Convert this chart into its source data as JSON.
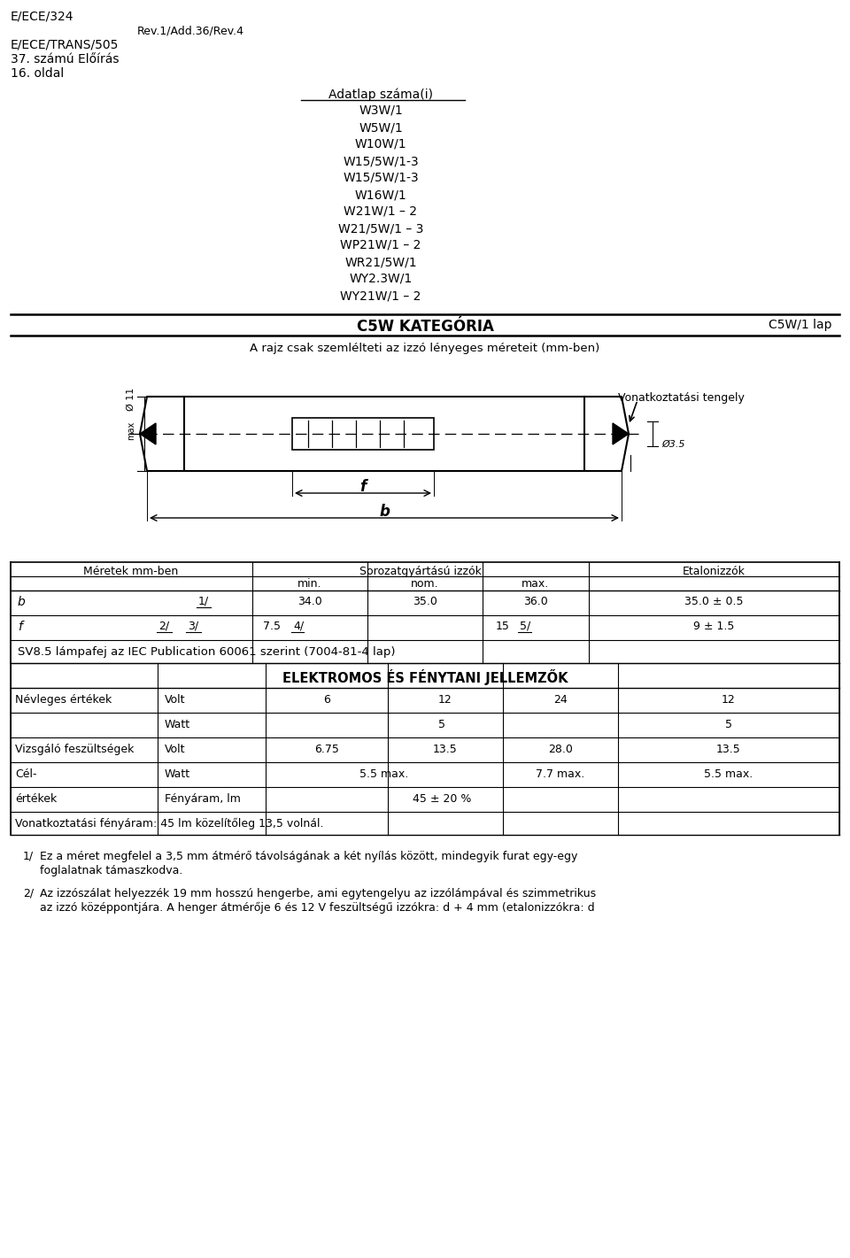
{
  "top_left_lines": [
    "E/ECE/324",
    "E/ECE/TRANS/505",
    "37. számú Előírás",
    "16. oldal"
  ],
  "top_center_label": "Rev.1/Add.36/Rev.4",
  "adatlap_title": "Adatlap száma(i)",
  "adatlap_items": [
    "W3W/1",
    "W5W/1",
    "W10W/1",
    "W15/5W/1-3",
    "W15/5W/1-3",
    "W16W/1",
    "W21W/1 – 2",
    "W21/5W/1 – 3",
    "WP21W/1 – 2",
    "WR21/5W/1",
    "WY2.3W/1",
    "WY21W/1 – 2"
  ],
  "category_title": "C5W KATEGÓRIA",
  "category_right": "C5W/1 lap",
  "drawing_subtitle": "A rajz csak szemlélteti az izzó lényeges méreteit (mm-ben)",
  "vonatkoztatasi": "Vonatkoztatási tengely",
  "sv_text": "SV8.5 lámpafej az IEC Publication 60061 szerint (7004-81-4 lap)",
  "elektromos_title": "ELEKTROMOS ÉS FÉNYTANI JELLEMZŐK",
  "vonatkoztatasi_bottom": "Vonatkoztatási fényáram: 45 lm közelítőleg 13,5 volnál.",
  "footnote1_num": "1/",
  "footnote1_line1": "Ez a méret megfelel a 3,5 mm átmérő távolságának a két nyílás között, mindegyik furat egy-egy",
  "footnote1_line2": "foglalatnak támaszkodva.",
  "footnote2_num": "2/",
  "footnote2_line1": "Az izzószálat helyezzék 19 mm hosszú hengerbe, ami egytengelyu az izzólámpával és szimmetrikus",
  "footnote2_line2": "az izzó középpontjára. A henger átmérője 6 és 12 V feszültségű izzókra: d + 4 mm (etalonizzókra: d"
}
